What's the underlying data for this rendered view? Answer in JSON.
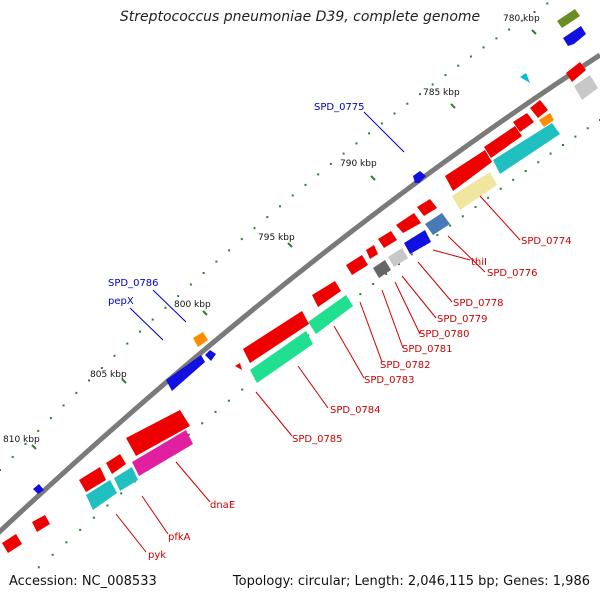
{
  "title": "Streptococcus pneumoniae D39, complete genome",
  "footer": {
    "accession": "Accession: NC_008533",
    "summary": "Topology: circular; Length: 2,046,115 bp; Genes: 1,986"
  },
  "colors": {
    "backbone": "#7a7a7a",
    "tick": "#2f7d2f",
    "label_red": "#cc0000",
    "label_blue": "#0000cc"
  },
  "ticks": [
    "780 kbp",
    "785 kbp",
    "790 kbp",
    "795 kbp",
    "800 kbp",
    "805 kbp",
    "810 kbp"
  ],
  "labels": [
    {
      "id": "spd-0775",
      "text": "SPD_0775",
      "color": "blue"
    },
    {
      "id": "spd-0774",
      "text": "SPD_0774",
      "color": "red"
    },
    {
      "id": "spd-0776",
      "text": "SPD_0776",
      "color": "red"
    },
    {
      "id": "thii",
      "text": "thiI",
      "color": "red"
    },
    {
      "id": "spd-0778",
      "text": "SPD_0778",
      "color": "red"
    },
    {
      "id": "spd-0779",
      "text": "SPD_0779",
      "color": "red"
    },
    {
      "id": "spd-0780",
      "text": "SPD_0780",
      "color": "red"
    },
    {
      "id": "spd-0781",
      "text": "SPD_0781",
      "color": "red"
    },
    {
      "id": "spd-0782",
      "text": "SPD_0782",
      "color": "red"
    },
    {
      "id": "spd-0783",
      "text": "SPD_0783",
      "color": "red"
    },
    {
      "id": "spd-0784",
      "text": "SPD_0784",
      "color": "red"
    },
    {
      "id": "spd-0785",
      "text": "SPD_0785",
      "color": "red"
    },
    {
      "id": "spd-0786",
      "text": "SPD_0786",
      "color": "blue"
    },
    {
      "id": "pepx",
      "text": "pepX",
      "color": "blue"
    },
    {
      "id": "dnae",
      "text": "dnaE",
      "color": "red"
    },
    {
      "id": "pfka",
      "text": "pfkA",
      "color": "red"
    },
    {
      "id": "pyk",
      "text": "pyk",
      "color": "red"
    }
  ]
}
